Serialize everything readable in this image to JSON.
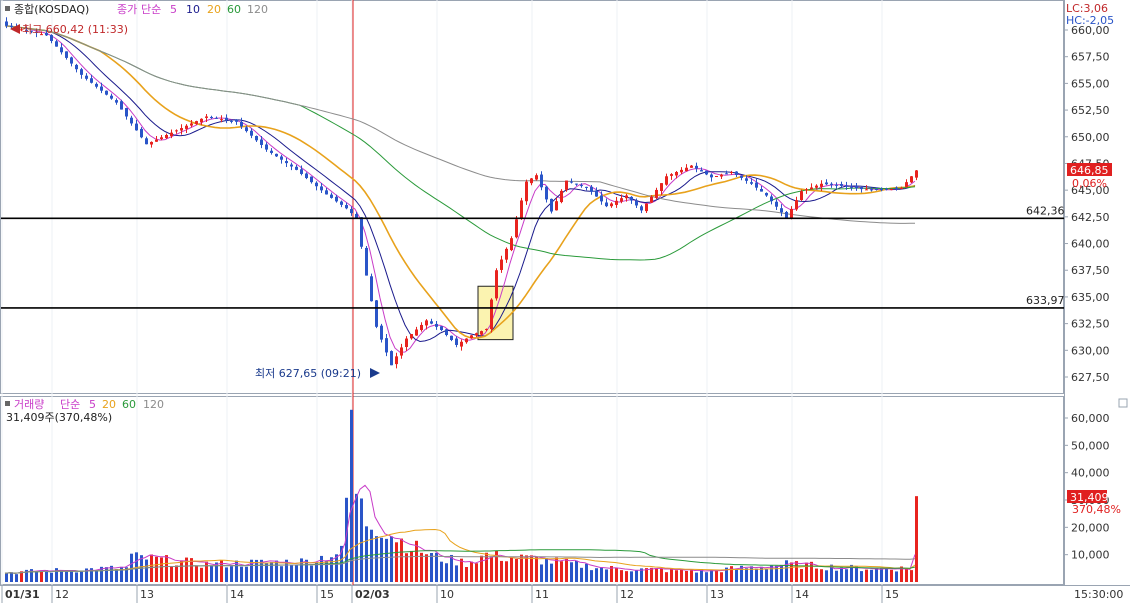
{
  "header": {
    "title": "종합(KOSDAQ)",
    "price_label": "종가",
    "ma_label": "단순",
    "ma_periods": [
      "5",
      "10",
      "20",
      "60",
      "120"
    ],
    "high_note": "최고 660,42 (11:33)",
    "low_note": "최저 627,65 (09:21)"
  },
  "top_right": {
    "lc": "LC:3,06",
    "hc": "HC:-2,05"
  },
  "volume_header": {
    "title": "거래량",
    "ma_label": "단순",
    "ma_periods": [
      "5",
      "20",
      "60",
      "120"
    ],
    "current": "31,409주(370,48%)"
  },
  "colors": {
    "up": "#e8231f",
    "down": "#2a55c8",
    "ma5": "#c83cc8",
    "ma10": "#1a1a8c",
    "ma20": "#e8a21c",
    "ma60": "#2a9a3a",
    "ma120": "#8c8c8c",
    "price_badge": "#e02020",
    "divider_line": "#e02020"
  },
  "chart_data": {
    "type": "candlestick",
    "price_axis": {
      "ticks": [
        "660,00",
        "657,50",
        "655,00",
        "652,50",
        "650,00",
        "647,50",
        "645,00",
        "642,50",
        "640,00",
        "637,50",
        "635,00",
        "632,50",
        "630,00",
        "627,50"
      ],
      "range": [
        626.0,
        662.2
      ]
    },
    "volume_axis": {
      "ticks": [
        "60,000",
        "50,000",
        "40,000",
        "30,000",
        "20,000",
        "10,000"
      ],
      "range": [
        0,
        66000
      ]
    },
    "x_axis": {
      "labels": [
        "01/31",
        "12",
        "13",
        "14",
        "15",
        "02/03",
        "10",
        "11",
        "12",
        "13",
        "14",
        "15"
      ],
      "time": "15:30:00"
    },
    "current_price": "646,85",
    "current_change": "0,06%",
    "current_volume": "31,409",
    "current_volume_ratio": "370,48%",
    "support_lines": [
      {
        "value": 642.36,
        "label": "642,36"
      },
      {
        "value": 633.97,
        "label": "633,97"
      }
    ],
    "session_divider_index": 70,
    "highlight_box": {
      "from_index": 95,
      "to_index": 101,
      "low": 631.0,
      "high": 636.0
    },
    "key_points": [
      {
        "index": 0,
        "price": 660.4
      },
      {
        "index": 8,
        "price": 659.5
      },
      {
        "index": 15,
        "price": 655.8
      },
      {
        "index": 22,
        "price": 653.2
      },
      {
        "index": 28,
        "price": 649.3
      },
      {
        "index": 34,
        "price": 650.6
      },
      {
        "index": 40,
        "price": 651.9
      },
      {
        "index": 46,
        "price": 651.4
      },
      {
        "index": 52,
        "price": 648.8
      },
      {
        "index": 58,
        "price": 646.9
      },
      {
        "index": 64,
        "price": 644.6
      },
      {
        "index": 68,
        "price": 643.3
      },
      {
        "index": 70,
        "price": 642.4
      },
      {
        "index": 72,
        "price": 637.0
      },
      {
        "index": 74,
        "price": 632.2
      },
      {
        "index": 77,
        "price": 628.6
      },
      {
        "index": 80,
        "price": 631.1
      },
      {
        "index": 84,
        "price": 632.8
      },
      {
        "index": 87,
        "price": 631.9
      },
      {
        "index": 90,
        "price": 630.5
      },
      {
        "index": 93,
        "price": 631.4
      },
      {
        "index": 96,
        "price": 632.0
      },
      {
        "index": 98,
        "price": 637.5
      },
      {
        "index": 101,
        "price": 640.5
      },
      {
        "index": 104,
        "price": 645.8
      },
      {
        "index": 106,
        "price": 646.4
      },
      {
        "index": 109,
        "price": 643.0
      },
      {
        "index": 112,
        "price": 645.9
      },
      {
        "index": 116,
        "price": 645.3
      },
      {
        "index": 120,
        "price": 643.5
      },
      {
        "index": 124,
        "price": 644.5
      },
      {
        "index": 127,
        "price": 643.1
      },
      {
        "index": 132,
        "price": 646.3
      },
      {
        "index": 137,
        "price": 647.3
      },
      {
        "index": 141,
        "price": 646.2
      },
      {
        "index": 145,
        "price": 646.7
      },
      {
        "index": 149,
        "price": 645.6
      },
      {
        "index": 152,
        "price": 644.5
      },
      {
        "index": 156,
        "price": 642.4
      },
      {
        "index": 159,
        "price": 644.9
      },
      {
        "index": 163,
        "price": 645.6
      },
      {
        "index": 167,
        "price": 645.4
      },
      {
        "index": 171,
        "price": 645.1
      },
      {
        "index": 175,
        "price": 645.0
      },
      {
        "index": 179,
        "price": 645.2
      },
      {
        "index": 182,
        "price": 646.85
      }
    ],
    "volume_key_points": [
      {
        "index": 0,
        "value": 3500
      },
      {
        "index": 24,
        "value": 5200
      },
      {
        "index": 25,
        "value": 9200
      },
      {
        "index": 40,
        "value": 6500
      },
      {
        "index": 60,
        "value": 7500
      },
      {
        "index": 67,
        "value": 11000
      },
      {
        "index": 68,
        "value": 30000
      },
      {
        "index": 69,
        "value": 63000
      },
      {
        "index": 70,
        "value": 32000
      },
      {
        "index": 72,
        "value": 22000
      },
      {
        "index": 75,
        "value": 20000
      },
      {
        "index": 80,
        "value": 14000
      },
      {
        "index": 86,
        "value": 9000
      },
      {
        "index": 92,
        "value": 7000
      },
      {
        "index": 96,
        "value": 10000
      },
      {
        "index": 100,
        "value": 9000
      },
      {
        "index": 105,
        "value": 8500
      },
      {
        "index": 120,
        "value": 5000
      },
      {
        "index": 140,
        "value": 4000
      },
      {
        "index": 156,
        "value": 6500
      },
      {
        "index": 170,
        "value": 5000
      },
      {
        "index": 181,
        "value": 5000
      },
      {
        "index": 182,
        "value": 31409
      }
    ]
  }
}
